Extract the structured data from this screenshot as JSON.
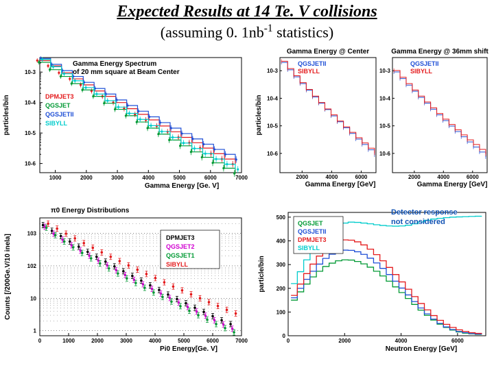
{
  "title": "Expected Results at 14 Te. V collisions",
  "subtitle_pre": "(assuming 0. 1nb",
  "subtitle_sup": "-1",
  "subtitle_post": " statistics)",
  "colors": {
    "dpmjet3": "#e41a1c",
    "qgsjet": "#009933",
    "qgsjetii": "#1f4fd6",
    "sibyll": "#00cccc",
    "qgsjet2_mag": "#d000d0",
    "black": "#000000"
  },
  "panel1": {
    "title_l1": "Gamma Energy Spectrum",
    "title_l2": "of 20 mm square at Beam Center",
    "ylabel": "particles/bin",
    "xlabel": "Gamma Energy [Ge. V]",
    "legend": [
      {
        "label": "DPMJET3",
        "color": "#e41a1c"
      },
      {
        "label": "QGSJET",
        "color": "#009933"
      },
      {
        "label": "QGSJETII",
        "color": "#1f4fd6"
      },
      {
        "label": "SIBYLL",
        "color": "#00cccc"
      }
    ],
    "xticks": [
      "1000",
      "2000",
      "3000",
      "4000",
      "5000",
      "6000",
      "7000"
    ],
    "yticks": [
      "10-6",
      "10-5",
      "10-4",
      "10-3"
    ],
    "series": {
      "dpmjet3": [
        0.0024,
        0.0016,
        0.00095,
        0.0006,
        0.00038,
        0.00024,
        0.00016,
        0.0001,
        6.3e-05,
        4.1e-05,
        2.7e-05,
        1.7e-05,
        1.1e-05,
        7.2e-06,
        4.8e-06,
        3.2e-06,
        2.1e-06,
        1.4e-06,
        9.5e-07
      ],
      "qgsjet": [
        0.0021,
        0.0012,
        0.00072,
        0.00042,
        0.00026,
        0.00016,
        9.5e-05,
        6e-05,
        3.7e-05,
        2.3e-05,
        1.45e-05,
        9.2e-06,
        5.9e-06,
        3.8e-06,
        2.4e-06,
        1.6e-06,
        1.05e-06,
        7e-07,
        4.7e-07
      ],
      "qgsjetii": [
        0.0028,
        0.0018,
        0.00112,
        0.00072,
        0.00046,
        0.00029,
        0.00019,
        0.000122,
        8e-05,
        5.2e-05,
        3.4e-05,
        2.2e-05,
        1.45e-05,
        9.6e-06,
        6.4e-06,
        4.3e-06,
        2.9e-06,
        2e-06,
        1.35e-06
      ],
      "sibyll": [
        0.0026,
        0.0015,
        0.00088,
        0.00052,
        0.00031,
        0.00019,
        0.000115,
        7.1e-05,
        4.4e-05,
        2.8e-05,
        1.75e-05,
        1.12e-05,
        7.2e-06,
        4.7e-06,
        3.1e-06,
        2.1e-06,
        1.4e-06,
        9.5e-07,
        6.4e-07
      ]
    }
  },
  "panel2": {
    "title_a": "Gamma Energy @ Center",
    "title_b": "Gamma Energy @ 36mm shift",
    "ylabel": "particles/bin",
    "xlabel": "Gamma Energy [GeV]",
    "xticks": [
      "2000",
      "4000",
      "6000"
    ],
    "yticks": [
      "10-6",
      "10-5",
      "10-4",
      "10-3"
    ],
    "legend": [
      {
        "label": "QGSJETII",
        "color": "#1f4fd6"
      },
      {
        "label": "SIBYLL",
        "color": "#e41a1c"
      }
    ],
    "series_left": {
      "qgsjetii": [
        0.002,
        0.00108,
        0.0006,
        0.00034,
        0.000195,
        0.000112,
        6.6e-05,
        3.9e-05,
        2.3e-05,
        1.4e-05,
        8.5e-06,
        5.3e-06,
        3.3e-06,
        2.1e-06,
        1.35e-06,
        8.8e-07
      ],
      "sibyll": [
        0.0022,
        0.00119,
        0.00066,
        0.00037,
        0.00021,
        0.00012,
        7e-05,
        4.1e-05,
        2.5e-05,
        1.5e-05,
        9.2e-06,
        5.8e-06,
        3.7e-06,
        2.4e-06,
        1.55e-06,
        1.02e-06
      ]
    },
    "series_right": {
      "qgsjetii": [
        0.0009,
        0.00052,
        0.0003,
        0.00018,
        0.000108,
        6.6e-05,
        4e-05,
        2.5e-05,
        1.55e-05,
        9.8e-06,
        6.2e-06,
        4e-06,
        2.6e-06,
        1.7e-06,
        1.12e-06,
        7.5e-07
      ],
      "sibyll": [
        0.00102,
        0.00058,
        0.00034,
        0.0002,
        0.00012,
        7.3e-05,
        4.5e-05,
        2.8e-05,
        1.75e-05,
        1.12e-05,
        7.2e-06,
        4.7e-06,
        3.1e-06,
        2.1e-06,
        1.4e-06,
        9.5e-07
      ]
    }
  },
  "panel3": {
    "title": "π0 Energy Distributions",
    "ylabel": "Counts [/200Ge.V/10 inela]",
    "xlabel": "Pi0 Energy[Ge. V]",
    "xticks": [
      "0",
      "1000",
      "2000",
      "3000",
      "4000",
      "5000",
      "6000",
      "7000"
    ],
    "yticks": [
      "1",
      "10",
      "102",
      "103"
    ],
    "legend": [
      {
        "label": "DPMJET3",
        "color": "#000000"
      },
      {
        "label": "QGSJET2",
        "color": "#d000d0"
      },
      {
        "label": "QGSJET1",
        "color": "#009933"
      },
      {
        "label": "SIBYLL",
        "color": "#e41a1c"
      }
    ],
    "series": {
      "dpmjet3": [
        1800,
        1200,
        820,
        560,
        390,
        270,
        190,
        135,
        96,
        68,
        49,
        35,
        25,
        18,
        13,
        9.5,
        7,
        5.1,
        3.8,
        2.8,
        2.1,
        1.6
      ],
      "qgsjet2": [
        1600,
        980,
        640,
        430,
        295,
        205,
        145,
        103,
        73,
        52,
        37,
        27,
        19.5,
        14,
        10.2,
        7.4,
        5.4,
        3.9,
        2.9,
        2.1,
        1.55,
        1.15
      ],
      "qgsjet1": [
        1500,
        880,
        560,
        370,
        250,
        170,
        118,
        83,
        58,
        41,
        29.5,
        21,
        15,
        11,
        7.9,
        5.7,
        4.1,
        3.0,
        2.2,
        1.6,
        1.2,
        0.89
      ],
      "sibyll": [
        2000,
        1400,
        980,
        700,
        500,
        360,
        260,
        190,
        140,
        103,
        76,
        56,
        42,
        31,
        23,
        17.5,
        13.2,
        10,
        7.6,
        5.8,
        4.4,
        3.4
      ]
    }
  },
  "panel4": {
    "ylabel": "particle/bin",
    "xlabel": "Neutron Energy [GeV]",
    "xticks": [
      "0",
      "2000",
      "4000",
      "6000"
    ],
    "yticks": [
      "0",
      "100",
      "200",
      "300",
      "400",
      "500"
    ],
    "legend": [
      {
        "label": "QGSJET",
        "color": "#009933"
      },
      {
        "label": "QGSJETII",
        "color": "#1f4fd6"
      },
      {
        "label": "DPMJET3",
        "color": "#e41a1c"
      },
      {
        "label": "SIBYLL",
        "color": "#00cccc"
      }
    ],
    "annotation_l1": "Detector response",
    "annotation_l2": "not considered",
    "series": {
      "qgsjet": [
        150,
        185,
        218,
        248,
        272,
        292,
        306,
        316,
        320,
        319,
        313,
        303,
        289,
        272,
        252,
        230,
        206,
        182,
        157,
        132,
        108,
        86,
        66,
        49,
        35,
        24,
        16,
        11,
        8,
        6,
        5
      ],
      "qgsjetii": [
        160,
        200,
        238,
        272,
        302,
        326,
        344,
        356,
        361,
        360,
        354,
        343,
        327,
        307,
        284,
        258,
        230,
        201,
        172,
        144,
        117,
        92,
        70,
        52,
        37,
        26,
        18,
        13,
        9,
        7,
        6
      ],
      "dpmjet3": [
        170,
        218,
        262,
        302,
        336,
        364,
        384,
        398,
        404,
        403,
        396,
        383,
        365,
        342,
        316,
        288,
        258,
        227,
        196,
        165,
        136,
        109,
        85,
        65,
        48,
        35,
        25,
        18,
        13,
        10,
        8
      ],
      "sibyll": [
        220,
        270,
        320,
        365,
        405,
        435,
        458,
        470,
        475,
        479,
        478,
        475,
        472,
        468,
        465,
        463,
        462,
        463,
        466,
        472,
        480,
        487,
        492,
        495,
        498,
        500,
        501,
        502,
        503,
        504,
        505
      ]
    }
  }
}
